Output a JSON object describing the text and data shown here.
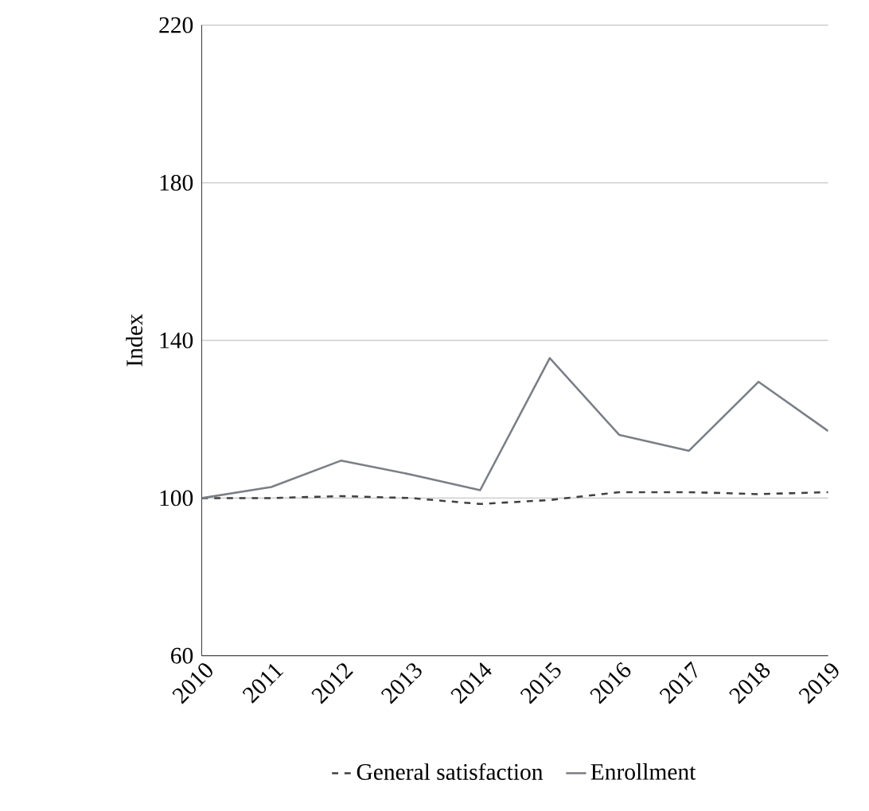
{
  "chart_data": {
    "type": "line",
    "ylabel": "Index",
    "categories": [
      "2010",
      "2011",
      "2012",
      "2013",
      "2014",
      "2015",
      "2016",
      "2017",
      "2018",
      "2019"
    ],
    "series": [
      {
        "name": "General satisfaction",
        "color": "#404040",
        "line_style": "dashed",
        "values": [
          100,
          100,
          100.5,
          100,
          98.5,
          99.5,
          101.5,
          101.5,
          101,
          101.5
        ]
      },
      {
        "name": "Enrollment",
        "color": "#7a7f86",
        "line_style": "solid",
        "values": [
          100,
          102.8,
          109.5,
          106,
          102,
          135.5,
          116,
          112,
          129.5,
          117
        ]
      }
    ],
    "ylim": [
      60,
      220
    ],
    "yticks": [
      60,
      100,
      140,
      180,
      220
    ],
    "grid": "y",
    "legend": "bottom",
    "marker": "none"
  }
}
